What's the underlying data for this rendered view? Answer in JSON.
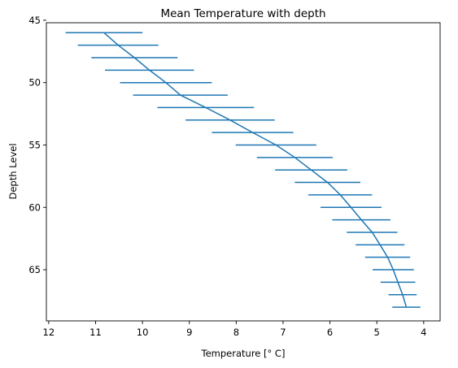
{
  "chart_data": {
    "type": "line",
    "title": "Mean Temperature with depth",
    "xlabel": "Temperature [° C]",
    "ylabel": "Depth Level",
    "x_inverted": true,
    "y_inverted": true,
    "xlim": [
      12.05,
      3.65
    ],
    "ylim": [
      45.2,
      69.1
    ],
    "x_ticks": [
      12,
      11,
      10,
      9,
      8,
      7,
      6,
      5,
      4
    ],
    "y_ticks": [
      45,
      50,
      55,
      60,
      65
    ],
    "grid": false,
    "color": "#1f77b4",
    "series": [
      {
        "depth": [
          46,
          47,
          48,
          49,
          50,
          51,
          52,
          53,
          54,
          55,
          56,
          57,
          58,
          59,
          60,
          61,
          62,
          63,
          64,
          65,
          66,
          67,
          68
        ],
        "mean": [
          10.82,
          10.52,
          10.17,
          9.85,
          9.5,
          9.19,
          8.65,
          8.13,
          7.65,
          7.15,
          6.75,
          6.4,
          6.05,
          5.78,
          5.55,
          5.33,
          5.1,
          4.93,
          4.77,
          4.65,
          4.55,
          4.45,
          4.37
        ],
        "xerr": [
          0.82,
          0.86,
          0.92,
          0.95,
          0.98,
          1.01,
          1.03,
          0.95,
          0.87,
          0.86,
          0.81,
          0.77,
          0.7,
          0.68,
          0.65,
          0.62,
          0.54,
          0.52,
          0.48,
          0.44,
          0.37,
          0.3,
          0.3
        ]
      }
    ]
  }
}
